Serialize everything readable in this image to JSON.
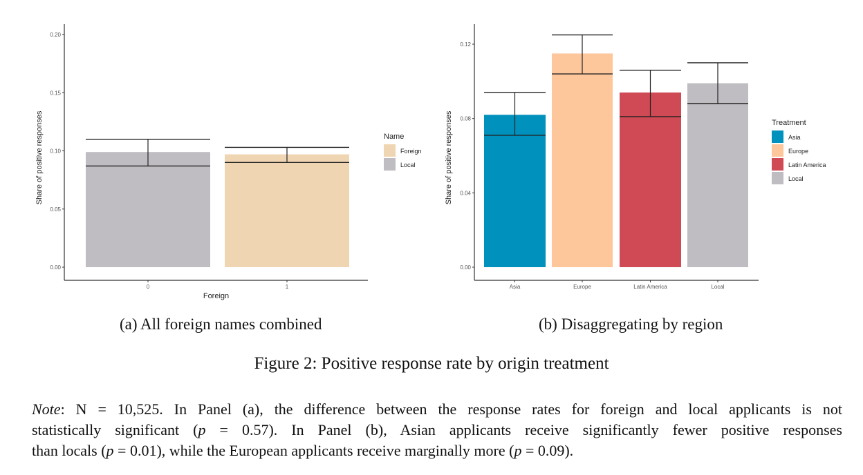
{
  "chart_data": [
    {
      "type": "bar",
      "panel": "a",
      "xlabel": "Foreign",
      "ylabel": "Share of positive responses",
      "ylim": [
        0,
        0.2
      ],
      "yticks": [
        "0.00",
        "0.05",
        "0.10",
        "0.15",
        "0.20"
      ],
      "ytick_values": [
        0,
        0.05,
        0.1,
        0.15,
        0.2
      ],
      "categories": [
        "0",
        "1"
      ],
      "values": [
        0.099,
        0.097
      ],
      "error_low": [
        0.087,
        0.09
      ],
      "error_high": [
        0.11,
        0.103
      ],
      "bar_colors": [
        "#bfbdc1",
        "#f0d5b3"
      ],
      "legend": {
        "title": "Name",
        "items": [
          {
            "label": "Foreign",
            "color": "#f0d5b3"
          },
          {
            "label": "Local",
            "color": "#bfbdc1"
          }
        ],
        "placement": "right"
      },
      "grid": false
    },
    {
      "type": "bar",
      "panel": "b",
      "xlabel": "",
      "ylabel": "Share of positive responses",
      "ylim": [
        0,
        0.12
      ],
      "yticks": [
        "0.00",
        "0.04",
        "0.08",
        "0.12"
      ],
      "ytick_values": [
        0,
        0.04,
        0.08,
        0.12
      ],
      "categories": [
        "Asia",
        "Europe",
        "Latin America",
        "Local"
      ],
      "values": [
        0.082,
        0.115,
        0.094,
        0.099
      ],
      "error_low": [
        0.071,
        0.104,
        0.081,
        0.088
      ],
      "error_high": [
        0.094,
        0.125,
        0.106,
        0.11
      ],
      "bar_colors": [
        "#0091bc",
        "#fec69b",
        "#d04a55",
        "#bfbdc1"
      ],
      "legend": {
        "title": "Treatment",
        "items": [
          {
            "label": "Asia",
            "color": "#0091bc"
          },
          {
            "label": "Europe",
            "color": "#fec69b"
          },
          {
            "label": "Latin America",
            "color": "#d04a55"
          },
          {
            "label": "Local",
            "color": "#bfbdc1"
          }
        ],
        "placement": "right"
      },
      "grid": false
    }
  ],
  "captions": {
    "a": "(a) All foreign names combined",
    "b": "(b) Disaggregating by region",
    "figure": "Figure 2: Positive response rate by origin treatment"
  },
  "note": {
    "label": "Note",
    "line1": ": N = 10,525.  In Panel (a), the difference between the response rates for foreign and local applicants is not",
    "line2a": "statistically significant (",
    "p": "p",
    "line2b": " = 0.57).  In Panel (b), Asian applicants receive significantly fewer positive responses",
    "line3a": "than locals (",
    "line3b": " = 0.01), while the European applicants receive marginally more (",
    "line3c": " = 0.09)."
  }
}
